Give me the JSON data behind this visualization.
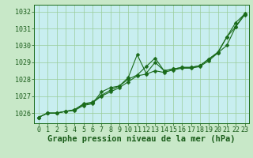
{
  "title": "Graphe pression niveau de la mer (hPa)",
  "hours": [
    0,
    1,
    2,
    3,
    4,
    5,
    6,
    7,
    8,
    9,
    10,
    11,
    12,
    13,
    14,
    15,
    16,
    17,
    18,
    19,
    20,
    21,
    22,
    23
  ],
  "ylim": [
    1025.4,
    1032.4
  ],
  "yticks": [
    1026,
    1027,
    1028,
    1029,
    1030,
    1031,
    1032
  ],
  "xlim": [
    -0.5,
    23.5
  ],
  "bg_color": "#c8e8c8",
  "plot_bg_color": "#c8eef0",
  "grid_color": "#99cc99",
  "line_color": "#1a6b1a",
  "line1": [
    1025.75,
    1026.0,
    1026.0,
    1026.1,
    1026.15,
    1026.45,
    1026.55,
    1027.25,
    1027.5,
    1027.6,
    1028.1,
    1029.45,
    1028.35,
    1029.0,
    1028.5,
    1028.6,
    1028.7,
    1028.7,
    1028.8,
    1029.2,
    1029.55,
    1030.5,
    1031.35,
    1031.85
  ],
  "line2": [
    1025.75,
    1026.0,
    1026.0,
    1026.1,
    1026.2,
    1026.5,
    1026.6,
    1027.0,
    1027.25,
    1027.5,
    1027.85,
    1028.2,
    1028.3,
    1028.5,
    1028.4,
    1028.55,
    1028.65,
    1028.65,
    1028.75,
    1029.1,
    1029.55,
    1030.0,
    1031.1,
    1031.8
  ],
  "line3": [
    1025.75,
    1026.0,
    1026.0,
    1026.1,
    1026.2,
    1026.55,
    1026.65,
    1027.05,
    1027.35,
    1027.6,
    1028.0,
    1028.25,
    1028.75,
    1029.25,
    1028.5,
    1028.6,
    1028.7,
    1028.7,
    1028.8,
    1029.2,
    1029.6,
    1030.5,
    1031.1,
    1031.9
  ],
  "title_color": "#1a5c1a",
  "title_fontsize": 7.5,
  "tick_fontsize": 6.0,
  "marker_size": 2.5,
  "linewidth": 0.8
}
